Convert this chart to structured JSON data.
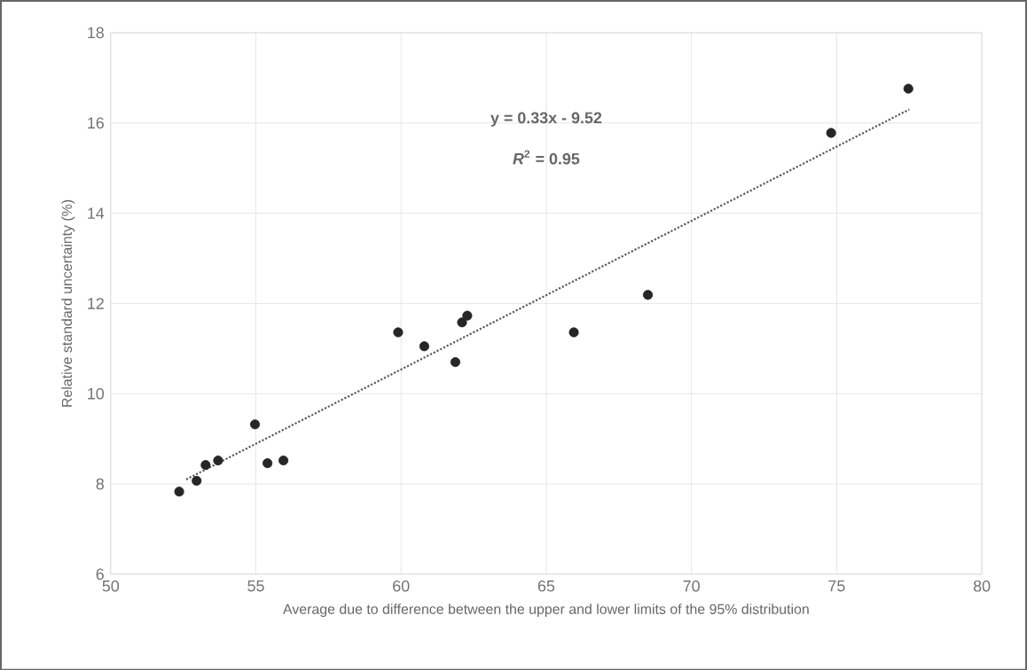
{
  "chart_data": {
    "type": "scatter",
    "xlabel": "Average due to difference between the upper and lower limits of the 95% distribution",
    "ylabel": "Relative standard uncertainty (%)",
    "annotations": [
      "y = 0.33x - 9.52",
      "*R*$^{2}$ = 0.95"
    ],
    "series": [
      {
        "color": "#262626",
        "marker": "circle",
        "x": [
          52.36,
          52.96,
          53.27,
          53.7,
          54.97,
          55.4,
          55.95,
          59.9,
          60.8,
          61.87,
          62.1,
          62.28,
          65.95,
          68.5,
          74.81,
          77.47
        ],
        "values": [
          7.83,
          8.07,
          8.42,
          8.52,
          9.32,
          8.46,
          8.52,
          11.36,
          11.05,
          10.7,
          11.58,
          11.73,
          11.36,
          12.19,
          15.78,
          16.76
        ]
      },
      {
        "type": "line",
        "color": "#595959",
        "line_style": "dotted",
        "marker": "none",
        "x": [
          52.6,
          77.5
        ],
        "values": [
          8.1,
          16.3
        ]
      }
    ],
    "xlim": [
      50,
      80
    ],
    "xticks": [
      50,
      55,
      60,
      65,
      70,
      75,
      80
    ],
    "ylim": [
      6,
      18
    ],
    "yticks": [
      6,
      8,
      10,
      12,
      14,
      16,
      18
    ],
    "grid": true
  }
}
